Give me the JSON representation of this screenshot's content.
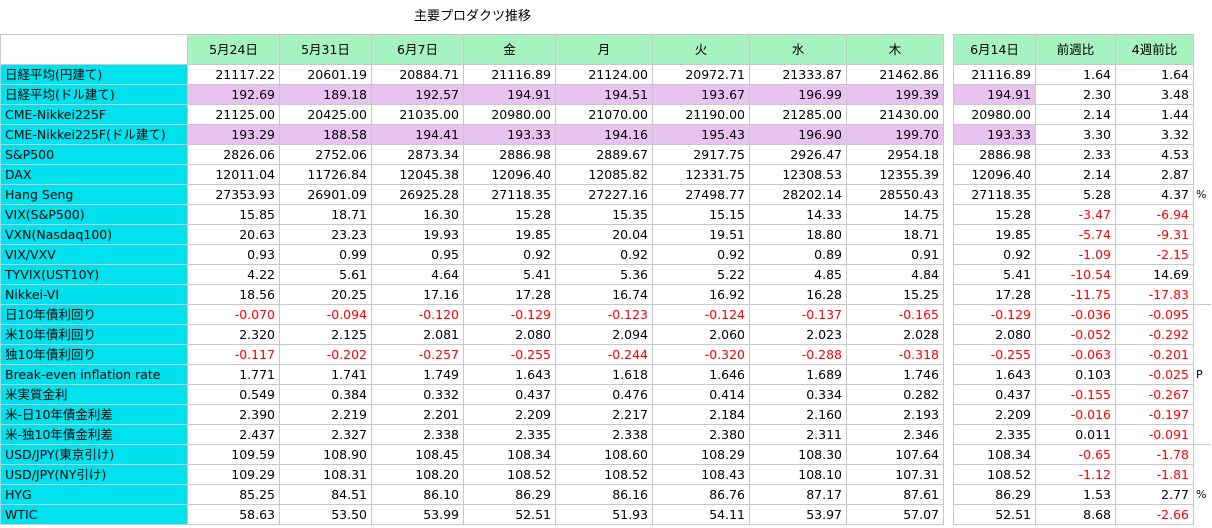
{
  "title": "主要プロダクツ推移",
  "headers": [
    "5月24日",
    "5月31日",
    "6月7日",
    "金",
    "月",
    "火",
    "水",
    "木",
    "6月14日",
    "前週比",
    "4週前比"
  ],
  "units": [
    "%",
    "P",
    "%"
  ],
  "rows": [
    {
      "label": "日経平均(円建て)",
      "values": [
        "21117.22",
        "20601.19",
        "20884.71",
        "21116.89",
        "21124.00",
        "20972.71",
        "21333.87",
        "21462.86",
        "21116.89",
        "1.64",
        "1.64"
      ]
    },
    {
      "label": "日経平均(ドル建て)",
      "values": [
        "192.69",
        "189.18",
        "192.57",
        "194.91",
        "194.51",
        "193.67",
        "196.99",
        "199.39",
        "194.91",
        "2.30",
        "3.48"
      ]
    },
    {
      "label": "CME-Nikkei225F",
      "values": [
        "21125.00",
        "20425.00",
        "21035.00",
        "20980.00",
        "21070.00",
        "21190.00",
        "21285.00",
        "21430.00",
        "20980.00",
        "2.14",
        "1.44"
      ]
    },
    {
      "label": "CME-Nikkei225F(ドル建て)",
      "values": [
        "193.29",
        "188.58",
        "194.41",
        "193.33",
        "194.16",
        "195.43",
        "196.90",
        "199.70",
        "193.33",
        "3.30",
        "3.32"
      ]
    },
    {
      "label": "S&P500",
      "values": [
        "2826.06",
        "2752.06",
        "2873.34",
        "2886.98",
        "2889.67",
        "2917.75",
        "2926.47",
        "2954.18",
        "2886.98",
        "2.33",
        "4.53"
      ]
    },
    {
      "label": "DAX",
      "values": [
        "12011.04",
        "11726.84",
        "12045.38",
        "12096.40",
        "12085.82",
        "12331.75",
        "12308.53",
        "12355.39",
        "12096.40",
        "2.14",
        "2.87"
      ]
    },
    {
      "label": "Hang Seng",
      "values": [
        "27353.93",
        "26901.09",
        "26925.28",
        "27118.35",
        "27227.16",
        "27498.77",
        "28202.14",
        "28550.43",
        "27118.35",
        "5.28",
        "4.37"
      ]
    },
    {
      "label": "VIX(S&P500)",
      "values": [
        "15.85",
        "18.71",
        "16.30",
        "15.28",
        "15.35",
        "15.15",
        "14.33",
        "14.75",
        "15.28",
        "-3.47",
        "-6.94"
      ]
    },
    {
      "label": "VXN(Nasdaq100)",
      "values": [
        "20.63",
        "23.23",
        "19.93",
        "19.85",
        "20.04",
        "19.51",
        "18.80",
        "18.71",
        "19.85",
        "-5.74",
        "-9.31"
      ]
    },
    {
      "label": "VIX/VXV",
      "values": [
        "0.93",
        "0.99",
        "0.95",
        "0.92",
        "0.92",
        "0.92",
        "0.89",
        "0.91",
        "0.92",
        "-1.09",
        "-2.15"
      ]
    },
    {
      "label": "TYVIX(UST10Y)",
      "values": [
        "4.22",
        "5.61",
        "4.64",
        "5.41",
        "5.36",
        "5.22",
        "4.85",
        "4.84",
        "5.41",
        "-10.54",
        "14.69"
      ]
    },
    {
      "label": "Nikkei-VI",
      "values": [
        "18.56",
        "20.25",
        "17.16",
        "17.28",
        "16.74",
        "16.92",
        "16.28",
        "15.25",
        "17.28",
        "-11.75",
        "-17.83"
      ]
    },
    {
      "label": "日10年債利回り",
      "values": [
        "-0.070",
        "-0.094",
        "-0.120",
        "-0.129",
        "-0.123",
        "-0.124",
        "-0.137",
        "-0.165",
        "-0.129",
        "-0.036",
        "-0.095"
      ]
    },
    {
      "label": "米10年債利回り",
      "values": [
        "2.320",
        "2.125",
        "2.081",
        "2.080",
        "2.094",
        "2.060",
        "2.023",
        "2.028",
        "2.080",
        "-0.052",
        "-0.292"
      ]
    },
    {
      "label": "独10年債利回り",
      "values": [
        "-0.117",
        "-0.202",
        "-0.257",
        "-0.255",
        "-0.244",
        "-0.320",
        "-0.288",
        "-0.318",
        "-0.255",
        "-0.063",
        "-0.201"
      ]
    },
    {
      "label": "Break-even inflation rate",
      "values": [
        "1.771",
        "1.741",
        "1.749",
        "1.643",
        "1.618",
        "1.646",
        "1.689",
        "1.746",
        "1.643",
        "0.103",
        "-0.025"
      ]
    },
    {
      "label": "米実質金利",
      "values": [
        "0.549",
        "0.384",
        "0.332",
        "0.437",
        "0.476",
        "0.414",
        "0.334",
        "0.282",
        "0.437",
        "-0.155",
        "-0.267"
      ]
    },
    {
      "label": "米-日10年債金利差",
      "values": [
        "2.390",
        "2.219",
        "2.201",
        "2.209",
        "2.217",
        "2.184",
        "2.160",
        "2.193",
        "2.209",
        "-0.016",
        "-0.197"
      ]
    },
    {
      "label": "米-独10年債金利差",
      "values": [
        "2.437",
        "2.327",
        "2.338",
        "2.335",
        "2.338",
        "2.380",
        "2.311",
        "2.346",
        "2.335",
        "0.011",
        "-0.091"
      ]
    },
    {
      "label": "USD/JPY(東京引け)",
      "values": [
        "109.59",
        "108.90",
        "108.45",
        "108.34",
        "108.60",
        "108.29",
        "108.30",
        "107.64",
        "108.34",
        "-0.65",
        "-1.78"
      ]
    },
    {
      "label": "USD/JPY(NY引け)",
      "values": [
        "109.29",
        "108.31",
        "108.20",
        "108.52",
        "108.52",
        "108.43",
        "108.10",
        "107.31",
        "108.52",
        "-1.12",
        "-1.81"
      ]
    },
    {
      "label": "HYG",
      "values": [
        "85.25",
        "84.51",
        "86.10",
        "86.29",
        "86.16",
        "86.76",
        "87.17",
        "87.61",
        "86.29",
        "1.53",
        "2.77"
      ]
    },
    {
      "label": "WTIC",
      "values": [
        "58.63",
        "53.50",
        "53.99",
        "52.51",
        "51.93",
        "54.11",
        "53.97",
        "57.07",
        "52.51",
        "8.68",
        "-2.66"
      ]
    }
  ]
}
